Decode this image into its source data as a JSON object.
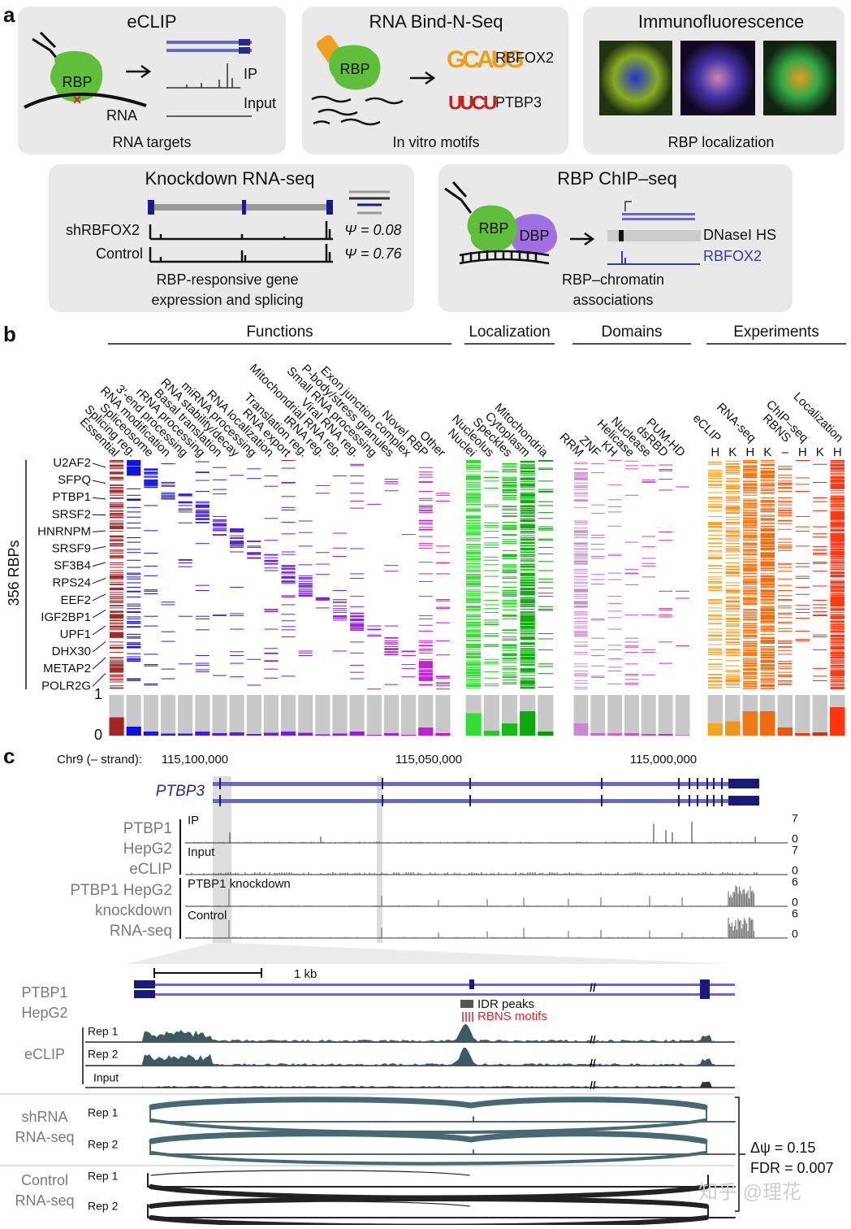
{
  "panel_labels": [
    "a",
    "b",
    "c"
  ],
  "panel_a": {
    "eclip": {
      "title": "eCLIP",
      "rbp": "RBP",
      "ip": "IP",
      "input": "Input",
      "rna": "RNA",
      "caption": "RNA targets"
    },
    "bindnseq": {
      "title": "RNA Bind-N-Seq",
      "rbp": "RBP",
      "motifs": [
        {
          "logo": "GCAUG",
          "name": "RBFOX2"
        },
        {
          "logo": "UUCU",
          "name": "PTBP3"
        }
      ],
      "caption": "In vitro motifs"
    },
    "immuno": {
      "title": "Immunofluorescence",
      "caption": "RBP localization"
    },
    "knockdown": {
      "title": "Knockdown RNA-seq",
      "rows": [
        {
          "name": "shRBFOX2",
          "psi": "Ψ = 0.08"
        },
        {
          "name": "Control",
          "psi": "Ψ = 0.76"
        }
      ],
      "caption": [
        "RBP-responsive gene",
        "expression and splicing"
      ]
    },
    "chipseq": {
      "title": "RBP ChIP–seq",
      "rbp": "RBP",
      "dbp": "DBP",
      "dnase": "DNaseI HS",
      "rbfox2": "RBFOX2",
      "caption": [
        "RBP–chromatin",
        "associations"
      ]
    }
  },
  "panel_b": {
    "groups": [
      {
        "title": "Functions",
        "columns": [
          {
            "label": "Essential",
            "color": "#a32626",
            "fraction": 0.45
          },
          {
            "label": "Splicing reg.",
            "color": "#1010d8",
            "fraction": 0.22
          },
          {
            "label": "Spliceosome",
            "color": "#1a1ae0",
            "fraction": 0.1
          },
          {
            "label": "RNA modification",
            "color": "#2a22dc",
            "fraction": 0.05
          },
          {
            "label": "3′-end processing",
            "color": "#3520da",
            "fraction": 0.05
          },
          {
            "label": "rRNA processing",
            "color": "#3f20d8",
            "fraction": 0.1
          },
          {
            "label": "Basal translation",
            "color": "#4a20d8",
            "fraction": 0.06
          },
          {
            "label": "RNA stability/decay",
            "color": "#5520d8",
            "fraction": 0.08
          },
          {
            "label": "miRNA processing",
            "color": "#5e20d8",
            "fraction": 0.04
          },
          {
            "label": "RNA localization",
            "color": "#6820d8",
            "fraction": 0.07
          },
          {
            "label": "RNA export",
            "color": "#7020d8",
            "fraction": 0.1
          },
          {
            "label": "Translation reg.",
            "color": "#7a20d8",
            "fraction": 0.07
          },
          {
            "label": "tRNA reg.",
            "color": "#8220d6",
            "fraction": 0.03
          },
          {
            "label": "Mitochondrial RNA reg.",
            "color": "#8a20d6",
            "fraction": 0.05
          },
          {
            "label": "Viral RNA reg.",
            "color": "#9220d4",
            "fraction": 0.1
          },
          {
            "label": "Small RNA processing",
            "color": "#9a20d2",
            "fraction": 0.02
          },
          {
            "label": "P-body/stress granules",
            "color": "#a420d0",
            "fraction": 0.06
          },
          {
            "label": "Exon junction complex",
            "color": "#ae20d0",
            "fraction": 0.02
          },
          {
            "label": "Novel RBP",
            "color": "#c020d0",
            "fraction": 0.2
          },
          {
            "label": "Other",
            "color": "#d010d0",
            "fraction": 0.06
          }
        ]
      },
      {
        "title": "Localization",
        "columns": [
          {
            "label": "Nuclei",
            "color": "#33dd33",
            "fraction": 0.55
          },
          {
            "label": "Nucleolus",
            "color": "#22cc22",
            "fraction": 0.12
          },
          {
            "label": "Speckles",
            "color": "#18bb18",
            "fraction": 0.3
          },
          {
            "label": "Cytoplasm",
            "color": "#10a810",
            "fraction": 0.6
          },
          {
            "label": "Mitochondria",
            "color": "#0a960a",
            "fraction": 0.1
          }
        ]
      },
      {
        "title": "Domains",
        "columns": [
          {
            "label": "RRM",
            "color": "#cc88cc",
            "fraction": 0.3
          },
          {
            "label": "ZNF",
            "color": "#c070c8",
            "fraction": 0.06
          },
          {
            "label": "KH",
            "color": "#cc66cc",
            "fraction": 0.06
          },
          {
            "label": "Helicase",
            "color": "#c855c8",
            "fraction": 0.06
          },
          {
            "label": "Nuclease",
            "color": "#cc44cc",
            "fraction": 0.04
          },
          {
            "label": "dsRBD",
            "color": "#c030c0",
            "fraction": 0.04
          },
          {
            "label": "PUM-HD",
            "color": "#bb22bb",
            "fraction": 0.01
          }
        ]
      },
      {
        "title": "Experiments",
        "assays": [
          {
            "label": "eCLIP",
            "columns": [
              {
                "label": "H",
                "color": "#f2a623",
                "fraction": 0.3
              },
              {
                "label": "K",
                "color": "#f09520",
                "fraction": 0.35
              }
            ]
          },
          {
            "label": "RNA-seq",
            "columns": [
              {
                "label": "H",
                "color": "#f07a18",
                "fraction": 0.6
              },
              {
                "label": "K",
                "color": "#ee6c10",
                "fraction": 0.6
              }
            ]
          },
          {
            "label": "RBNS",
            "columns": [
              {
                "label": "–",
                "color": "#ea5512",
                "fraction": 0.2
              }
            ]
          },
          {
            "label": "ChIP–seq",
            "columns": [
              {
                "label": "H",
                "color": "#e63c18",
                "fraction": 0.06
              },
              {
                "label": "K",
                "color": "#e02a10",
                "fraction": 0.08
              }
            ]
          },
          {
            "label": "Localization",
            "columns": [
              {
                "label": "H",
                "color": "#ff3510",
                "fraction": 0.7
              }
            ]
          }
        ]
      }
    ],
    "rbp_count": "356 RBPs",
    "rbps": [
      "U2AF2",
      "SFPQ",
      "PTBP1",
      "SRSF2",
      "HNRNPM",
      "SRSF9",
      "SF3B4",
      "RPS24",
      "EEF2",
      "IGF2BP1",
      "UPF1",
      "DHX30",
      "METAP2",
      "POLR2G"
    ],
    "ylim": [
      0,
      1
    ],
    "yticks": [
      0,
      1
    ]
  },
  "panel_c": {
    "chrom": "Chr9 (– strand):",
    "coords": [
      "115,100,000",
      "115,050,000",
      "115,000,000"
    ],
    "gene": "PTBP3",
    "track_groups": [
      [
        "PTBP1",
        "HepG2",
        "eCLIP"
      ],
      [
        "PTBP1 HepG2",
        "knockdown",
        "RNA-seq"
      ]
    ],
    "tracks": [
      {
        "label": "IP",
        "max": 7,
        "min": 0
      },
      {
        "label": "Input",
        "max": 7,
        "min": 0
      },
      {
        "label": "PTBP1 knockdown",
        "max": 6,
        "min": 0
      },
      {
        "label": "Control",
        "max": 6,
        "min": 0
      }
    ],
    "zoom": {
      "scale": "1 kb",
      "cell": [
        "PTBP1",
        "HepG2"
      ],
      "idr": "IDR peaks",
      "rbns": "RBNS motifs",
      "eclip": {
        "label": "eCLIP",
        "reps": [
          "Rep 1",
          "Rep 2",
          "Input"
        ]
      },
      "shrna": {
        "label": [
          "shRNA",
          "RNA-seq"
        ],
        "reps": [
          "Rep 1",
          "Rep 2"
        ]
      },
      "control": {
        "label": [
          "Control",
          "RNA-seq"
        ],
        "reps": [
          "Rep 1",
          "Rep 2"
        ]
      },
      "dpsi": "Δψ = 0.15",
      "fdr": "FDR = 0.007"
    },
    "watermark": "知乎 @理花"
  }
}
